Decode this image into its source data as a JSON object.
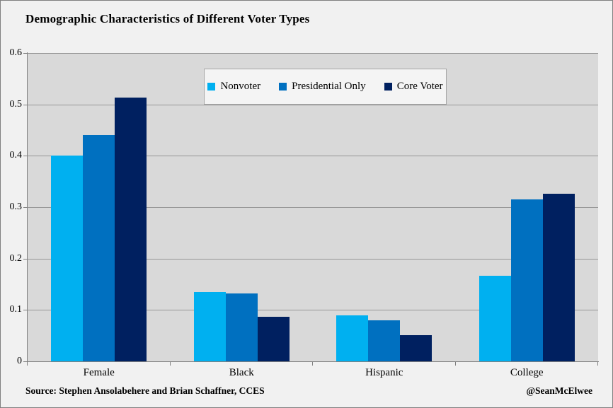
{
  "title": "Demographic Characteristics of Different Voter Types",
  "source_note": "Source: Stephen Ansolabehere and Brian Schaffner, CCES",
  "credit": "@SeanMcElwee",
  "colors": {
    "figure_background": "#F1F1F1",
    "plot_background": "#D9D9D9",
    "gridline": "#969696",
    "axis": "#808080",
    "legend_background": "#F4F4F4",
    "legend_border": "#A6A6A6",
    "nonvoter": "#00B0F0",
    "presidential_only": "#0070C0",
    "core_voter": "#002060"
  },
  "chart_data": {
    "type": "bar",
    "title": "Demographic Characteristics of Different Voter Types",
    "categories": [
      "Female",
      "Black",
      "Hispanic",
      "College"
    ],
    "series": [
      {
        "name": "Nonvoter",
        "color": "#00B0F0",
        "values": [
          0.4,
          0.135,
          0.09,
          0.167
        ]
      },
      {
        "name": "Presidential Only",
        "color": "#0070C0",
        "values": [
          0.44,
          0.132,
          0.08,
          0.315
        ]
      },
      {
        "name": "Core Voter",
        "color": "#002060",
        "values": [
          0.513,
          0.087,
          0.051,
          0.326
        ]
      }
    ],
    "xlabel": "",
    "ylabel": "",
    "ylim": [
      0,
      0.6
    ],
    "ytick_labels": [
      "0",
      "0.1",
      "0.2",
      "0.3",
      "0.4",
      "0.5",
      "0.6"
    ],
    "grid": true,
    "legend_position": "top-center-inside",
    "plot_background": "#D9D9D9"
  }
}
